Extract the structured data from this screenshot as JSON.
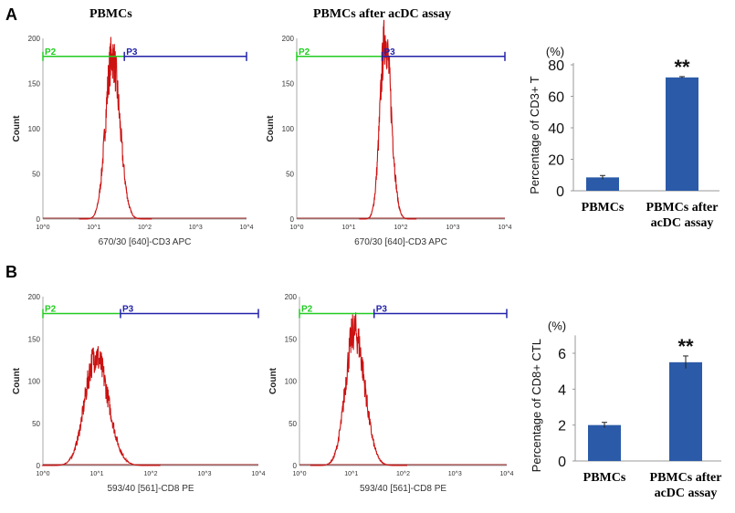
{
  "panel_labels": [
    "A",
    "B"
  ],
  "column_titles": [
    "PBMCs",
    "PBMCs after acDC assay"
  ],
  "chart_data": [
    {
      "type": "histogram",
      "panel": "A",
      "xlabel": "670/30 [640]-CD3 APC",
      "ylabel": "Count",
      "x_scale": "log",
      "x_ticks": [
        "10^0",
        "10^1",
        "10^2",
        "10^3",
        "10^4"
      ],
      "xlim_log10": [
        0,
        4
      ],
      "ylim": [
        0,
        200
      ],
      "y_ticks": [
        0,
        50,
        100,
        150,
        200
      ],
      "gates": [
        {
          "name": "P2",
          "color": "#22cc22",
          "from_log10": 0,
          "to_log10": 1.6
        },
        {
          "name": "P3",
          "color": "#2222aa",
          "from_log10": 1.6,
          "to_log10": 4
        }
      ],
      "gate_level": 180,
      "peak_log10": 1.36,
      "peak_count": 180,
      "spread_log10": 0.13,
      "color": "#cc1111"
    },
    {
      "type": "histogram",
      "panel": "A",
      "xlabel": "670/30 [640]-CD3 APC",
      "ylabel": "Count",
      "x_scale": "log",
      "x_ticks": [
        "10^0",
        "10^1",
        "10^2",
        "10^3",
        "10^4"
      ],
      "xlim_log10": [
        0,
        4
      ],
      "ylim": [
        0,
        200
      ],
      "y_ticks": [
        0,
        50,
        100,
        150,
        200
      ],
      "gates": [
        {
          "name": "P2",
          "color": "#22cc22",
          "from_log10": 0,
          "to_log10": 1.64
        },
        {
          "name": "P3",
          "color": "#2222aa",
          "from_log10": 1.64,
          "to_log10": 4
        }
      ],
      "gate_level": 180,
      "peak_log10": 1.7,
      "peak_count": 200,
      "spread_log10": 0.1,
      "color": "#cc1111"
    },
    {
      "type": "bar",
      "panel": "A",
      "categories": [
        "PBMCs",
        "PBMCs after acDC assay"
      ],
      "values": [
        8.5,
        72
      ],
      "errors": [
        1.2,
        0.5
      ],
      "significance": [
        "",
        "**"
      ],
      "ylabel": "Percentage of  CD3+ T",
      "unit": "(%)",
      "ylim": [
        0,
        80
      ],
      "y_ticks": [
        0,
        20,
        40,
        60,
        80
      ],
      "color": "#2b5ba8"
    },
    {
      "type": "histogram",
      "panel": "B",
      "xlabel": "593/40 [561]-CD8 PE",
      "ylabel": "Count",
      "x_scale": "log",
      "x_ticks": [
        "10^0",
        "10^1",
        "10^2",
        "10^3",
        "10^4"
      ],
      "xlim_log10": [
        0,
        4
      ],
      "ylim": [
        0,
        200
      ],
      "y_ticks": [
        0,
        50,
        100,
        150,
        200
      ],
      "gates": [
        {
          "name": "P2",
          "color": "#22cc22",
          "from_log10": 0,
          "to_log10": 1.44
        },
        {
          "name": "P3",
          "color": "#2222aa",
          "from_log10": 1.44,
          "to_log10": 4
        }
      ],
      "gate_level": 180,
      "peak_log10": 0.98,
      "peak_count": 130,
      "spread_log10": 0.2,
      "color": "#cc1111"
    },
    {
      "type": "histogram",
      "panel": "B",
      "xlabel": "593/40 [561]-CD8 PE",
      "ylabel": "Count",
      "x_scale": "log",
      "x_ticks": [
        "10^0",
        "10^1",
        "10^2",
        "10^3",
        "10^4"
      ],
      "xlim_log10": [
        0,
        4
      ],
      "ylim": [
        0,
        200
      ],
      "y_ticks": [
        0,
        50,
        100,
        150,
        200
      ],
      "gates": [
        {
          "name": "P2",
          "color": "#22cc22",
          "from_log10": 0,
          "to_log10": 1.44
        },
        {
          "name": "P3",
          "color": "#2222aa",
          "from_log10": 1.44,
          "to_log10": 4
        }
      ],
      "gate_level": 180,
      "peak_log10": 1.06,
      "peak_count": 160,
      "spread_log10": 0.17,
      "color": "#cc1111"
    },
    {
      "type": "bar",
      "panel": "B",
      "categories": [
        "PBMCs",
        "PBMCs after acDC assay"
      ],
      "values": [
        2.0,
        5.5
      ],
      "errors": [
        0.15,
        0.35
      ],
      "significance": [
        "",
        "**"
      ],
      "ylabel": "Percentage of  CD8+ CTL",
      "unit": "(%)",
      "ylim": [
        0,
        7
      ],
      "y_ticks": [
        0,
        2,
        4,
        6
      ],
      "color": "#2b5ba8"
    }
  ]
}
